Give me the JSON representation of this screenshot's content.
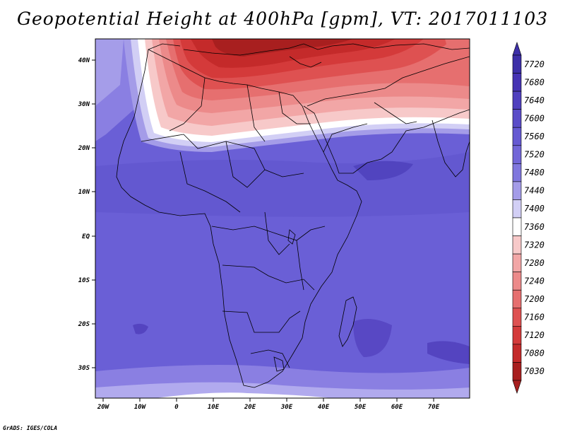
{
  "title": "Geopotential Height at 400hPa [gpm], VT: 2017011103",
  "credit": "GrADS: IGES/COLA",
  "lat_ticks": [
    "40N",
    "30N",
    "20N",
    "10N",
    "EQ",
    "10S",
    "20S",
    "30S"
  ],
  "lon_ticks": [
    "20W",
    "10W",
    "0",
    "10E",
    "20E",
    "30E",
    "40E",
    "50E",
    "60E",
    "70E"
  ],
  "colorbar": {
    "levels": [
      "7720",
      "7680",
      "7640",
      "7600",
      "7560",
      "7520",
      "7480",
      "7440",
      "7400",
      "7360",
      "7320",
      "7280",
      "7240",
      "7200",
      "7160",
      "7120",
      "7080",
      "7030"
    ],
    "colors": [
      "#3d2fa8",
      "#4633b4",
      "#5040bf",
      "#5a4cc8",
      "#6559d2",
      "#7266d8",
      "#8077de",
      "#a49ce8",
      "#d2cff5",
      "#ffffff",
      "#f7c9c9",
      "#f2a6a6",
      "#ec8a8a",
      "#e66f6f",
      "#de5151",
      "#d43a3a",
      "#c42a2a",
      "#a81f1f"
    ]
  }
}
